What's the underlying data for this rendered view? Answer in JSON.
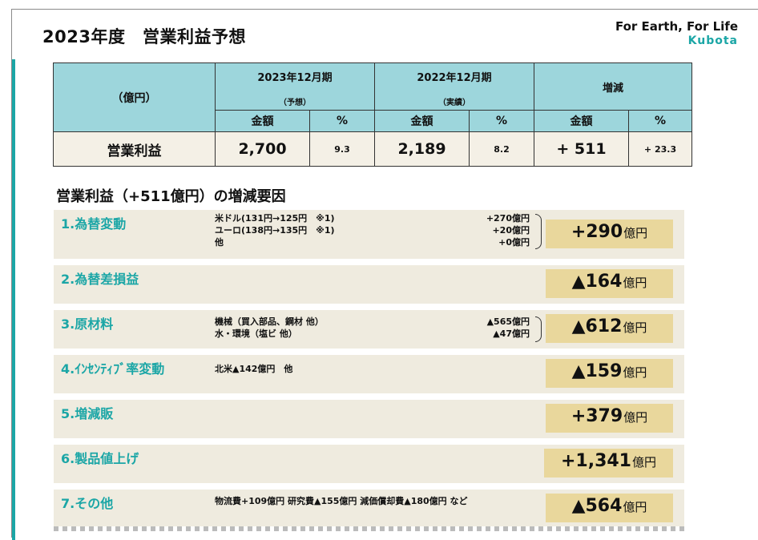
{
  "title": "2023年度　営業利益予想",
  "brand": {
    "tagline": "For Earth, For Life",
    "logo": "Kubota"
  },
  "summary": {
    "unit_label": "（億円）",
    "col_forecast": {
      "label": "2023年12月期",
      "sub": "（予想）"
    },
    "col_actual": {
      "label": "2022年12月期",
      "sub": "（実績）"
    },
    "col_change": {
      "label": "増減"
    },
    "amount_label": "金額",
    "percent_label": "%",
    "row_label": "営業利益",
    "forecast_amount": "2,700",
    "forecast_percent": "9.3",
    "actual_amount": "2,189",
    "actual_percent": "8.2",
    "change_amount": "+ 511",
    "change_percent": "+ 23.3"
  },
  "section_title": "営業利益（+511億円）の増減要因",
  "unit": "億円",
  "factors": [
    {
      "name": "1.為替変動",
      "details": [
        "米ドル(131円→125円　※1)",
        "ユーロ(138円→135円　※1)",
        "他"
      ],
      "amounts": [
        "+270億円",
        "+20億円",
        "+0億円"
      ],
      "value": "+290"
    },
    {
      "name": "2.為替差損益",
      "details": [],
      "amounts": [],
      "value": "▲164"
    },
    {
      "name": "3.原材料",
      "details": [
        "機械（買入部品、鋼材 他）",
        "水・環境（塩ビ 他）"
      ],
      "amounts": [
        "▲565億円",
        "▲47億円"
      ],
      "value": "▲612"
    },
    {
      "name": "4.ｲﾝｾﾝﾃｨﾌﾞ率変動",
      "details": [
        "北米▲142億円　他"
      ],
      "amounts": [],
      "value": "▲159"
    },
    {
      "name": "5.増減販",
      "details": [],
      "amounts": [],
      "value": "+379"
    },
    {
      "name": "6.製品値上げ",
      "details": [],
      "amounts": [],
      "value": "+1,341"
    },
    {
      "name": "7.その他",
      "details": [
        "物流費+109億円 研究費▲155億円 減価償却費▲180億円 など"
      ],
      "amounts": [],
      "value": "▲564"
    }
  ]
}
